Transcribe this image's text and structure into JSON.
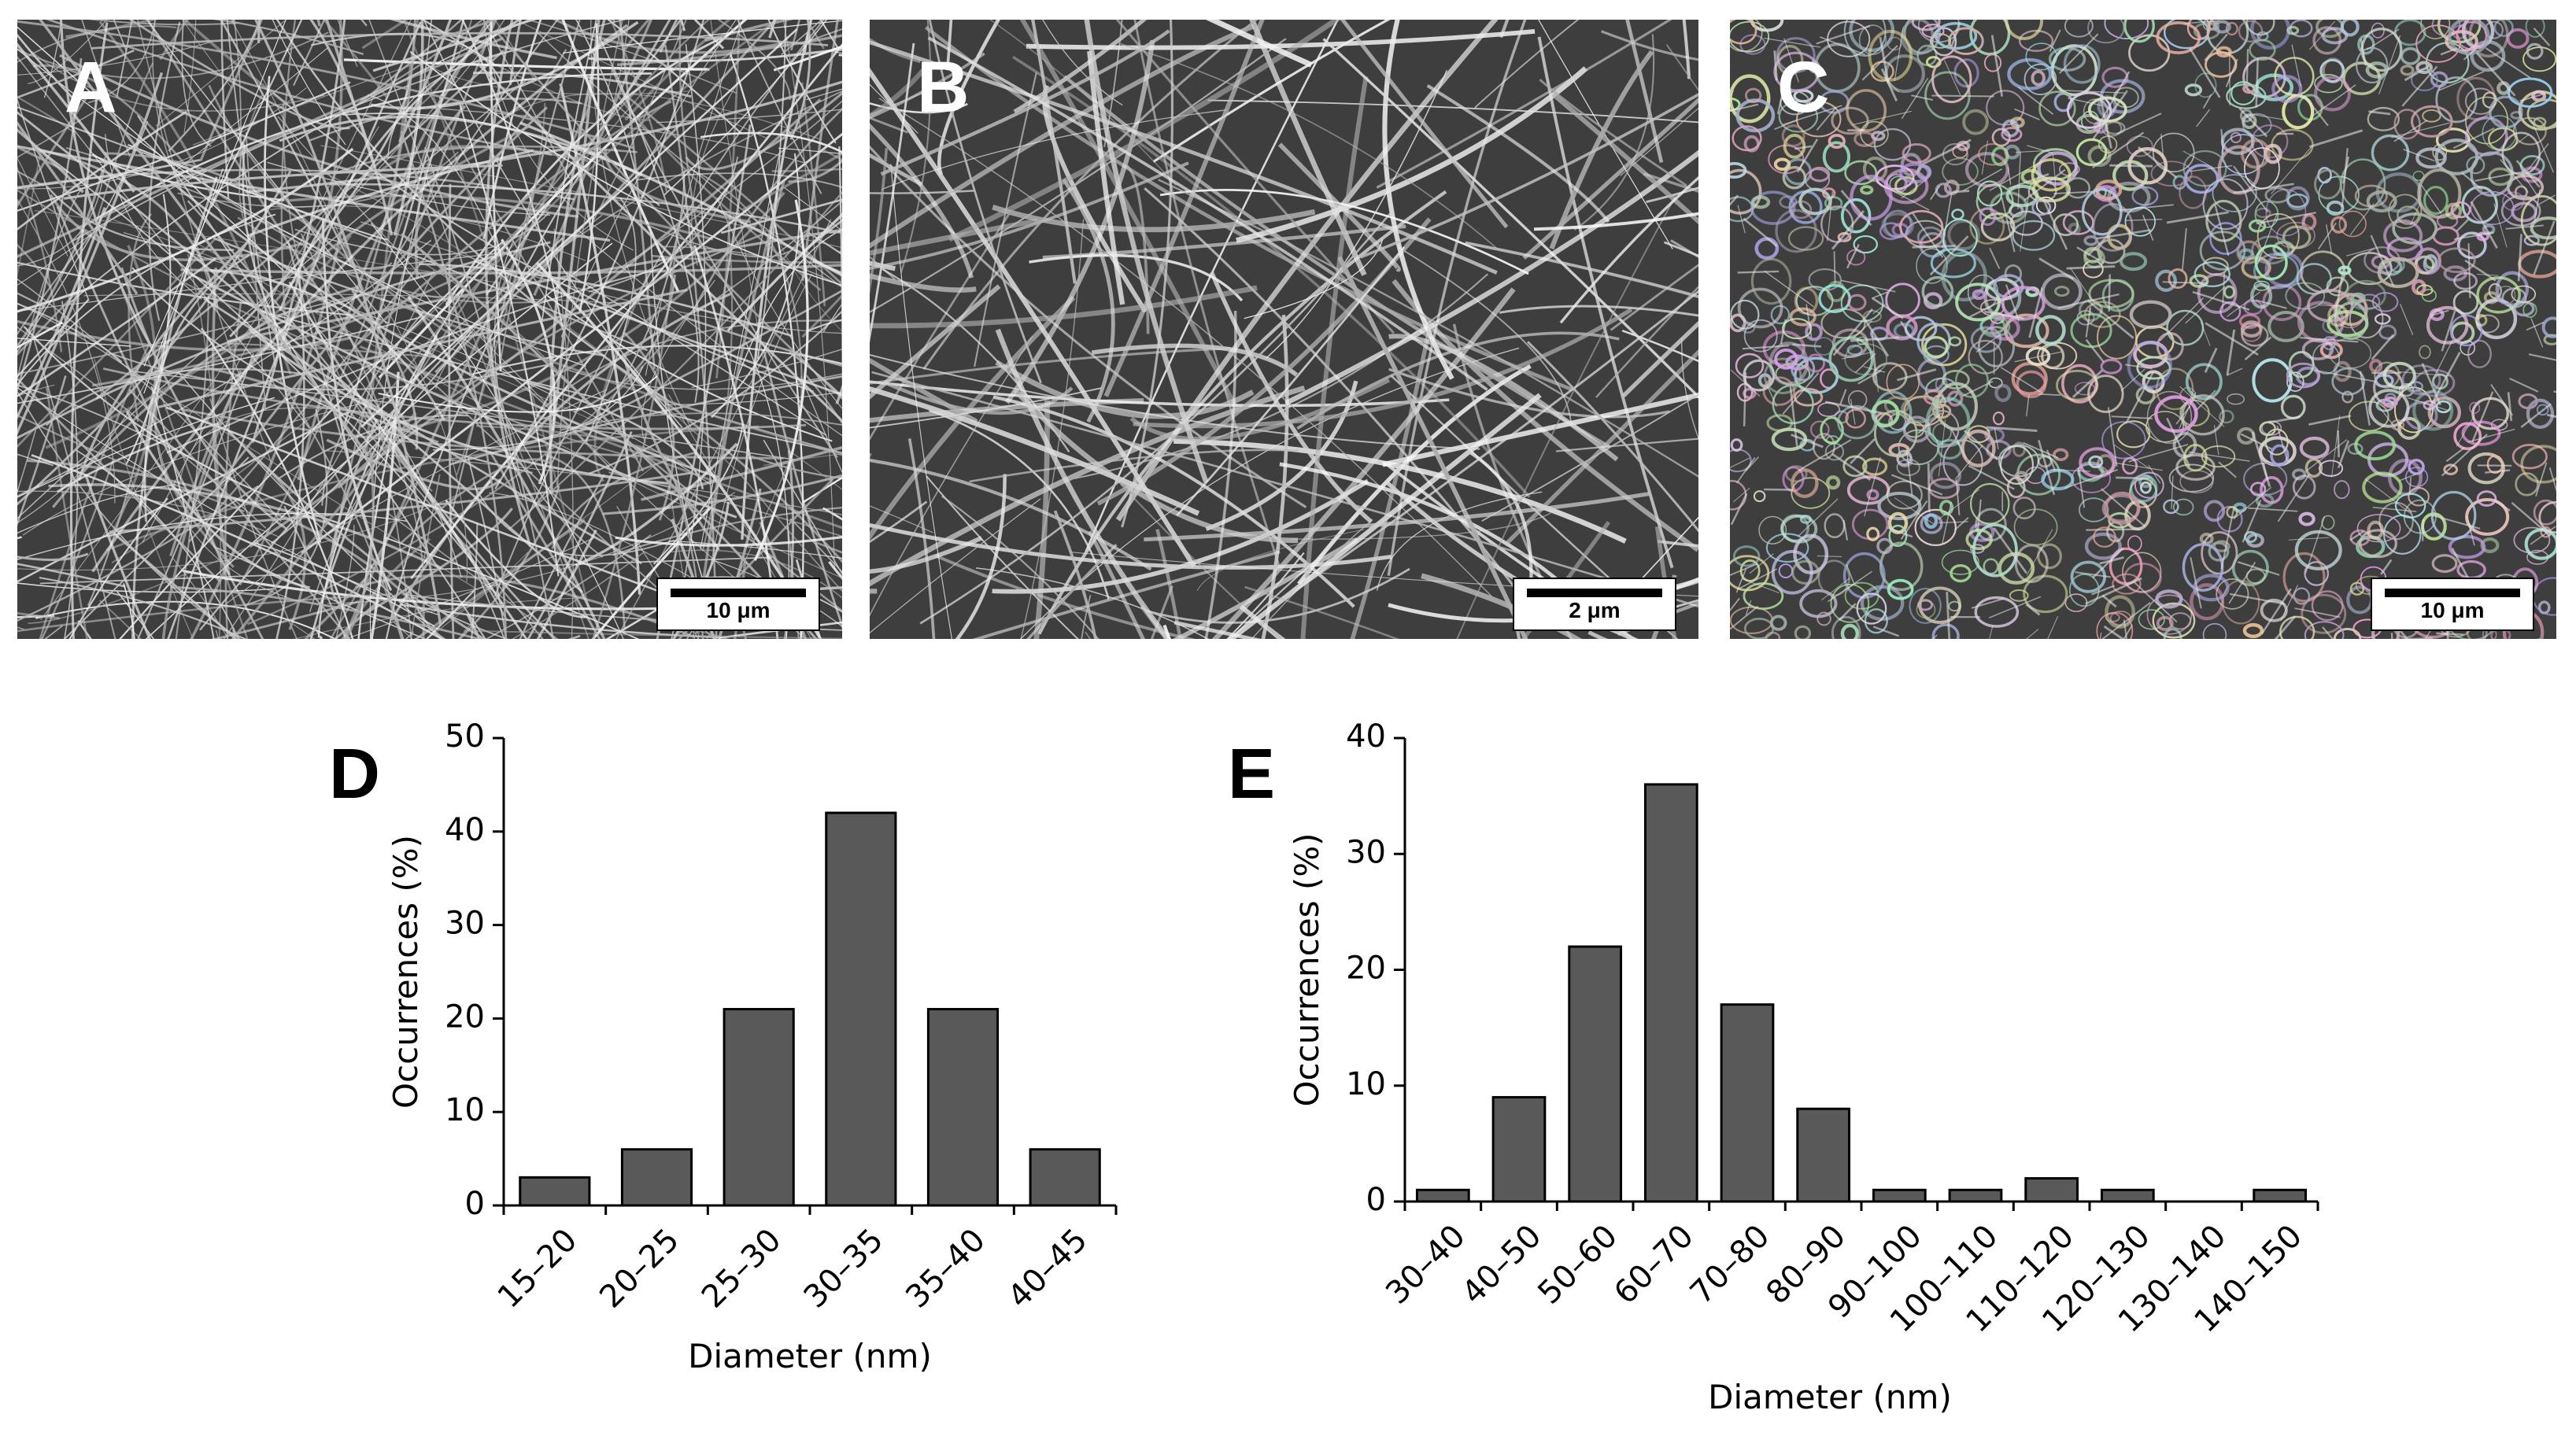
{
  "panels": [
    {
      "label": "A",
      "scale_label": "10 μm"
    },
    {
      "label": "B",
      "scale_label": "2 μm"
    },
    {
      "label": "C",
      "scale_label": "10 μm"
    }
  ],
  "chart_data": [
    {
      "type": "bar",
      "panel_label": "D",
      "categories": [
        "15–20",
        "20–25",
        "25–30",
        "30–35",
        "35–40",
        "40–45"
      ],
      "values": [
        3,
        6,
        21,
        42,
        21,
        6
      ],
      "xlabel": "Diameter (nm)",
      "ylabel": "Occurrences (%)",
      "ylim": [
        0,
        50
      ],
      "yticks": [
        0,
        10,
        20,
        30,
        40,
        50
      ],
      "bar_color": "#595959",
      "grid": false
    },
    {
      "type": "bar",
      "panel_label": "E",
      "categories": [
        "30–40",
        "40–50",
        "50–60",
        "60–70",
        "70–80",
        "80–90",
        "90–100",
        "100–110",
        "110–120",
        "120–130",
        "130–140",
        "140–150"
      ],
      "values": [
        1,
        9,
        22,
        36,
        17,
        8,
        1,
        1,
        2,
        1,
        0,
        1
      ],
      "xlabel": "Diameter (nm)",
      "ylabel": "Occurrences (%)",
      "ylim": [
        0,
        40
      ],
      "yticks": [
        0,
        10,
        20,
        30,
        40
      ],
      "bar_color": "#595959",
      "grid": false
    }
  ]
}
